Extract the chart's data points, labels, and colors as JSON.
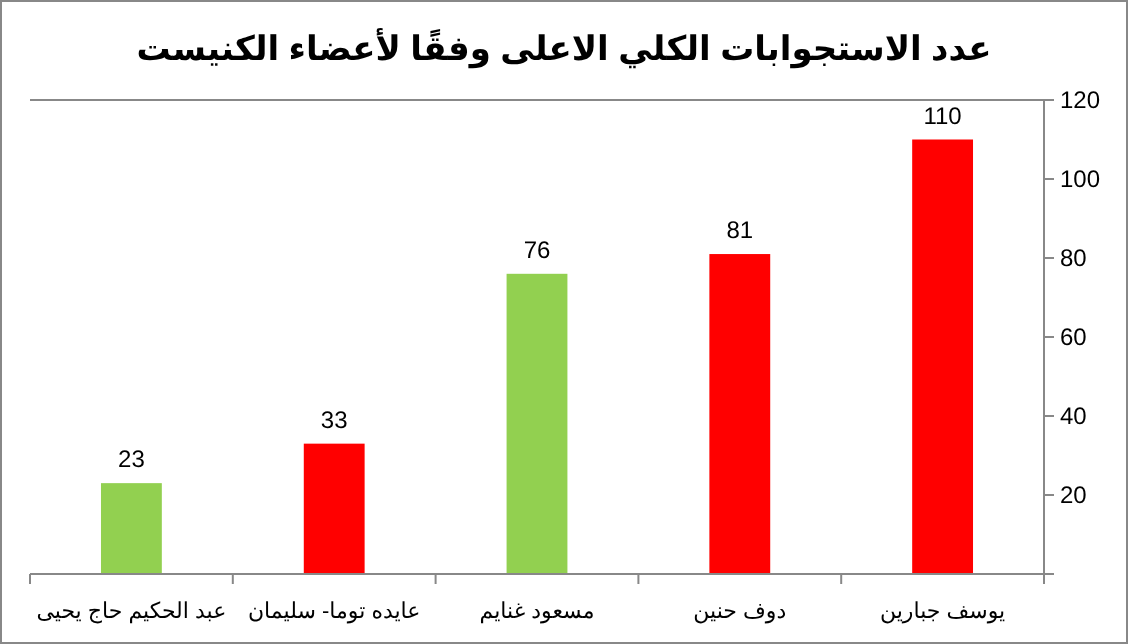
{
  "chart_data": {
    "type": "bar",
    "title": "عدد الاستجوابات الكلي الاعلى وفقًا لأعضاء الكنيست",
    "categories": [
      "عبد الحكيم حاج يحيى",
      "عايده توما- سليمان",
      "مسعود غنايم",
      "دوف حنين",
      "يوسف جبارين"
    ],
    "values": [
      23,
      33,
      76,
      81,
      110
    ],
    "colors": [
      "#92d050",
      "#ff0000",
      "#92d050",
      "#ff0000",
      "#ff0000"
    ],
    "ylim": [
      0,
      120
    ],
    "yticks": [
      {
        "value": 0,
        "label": null
      },
      20,
      40,
      60,
      80,
      100,
      120
    ],
    "data_labels": true,
    "grid": false
  }
}
